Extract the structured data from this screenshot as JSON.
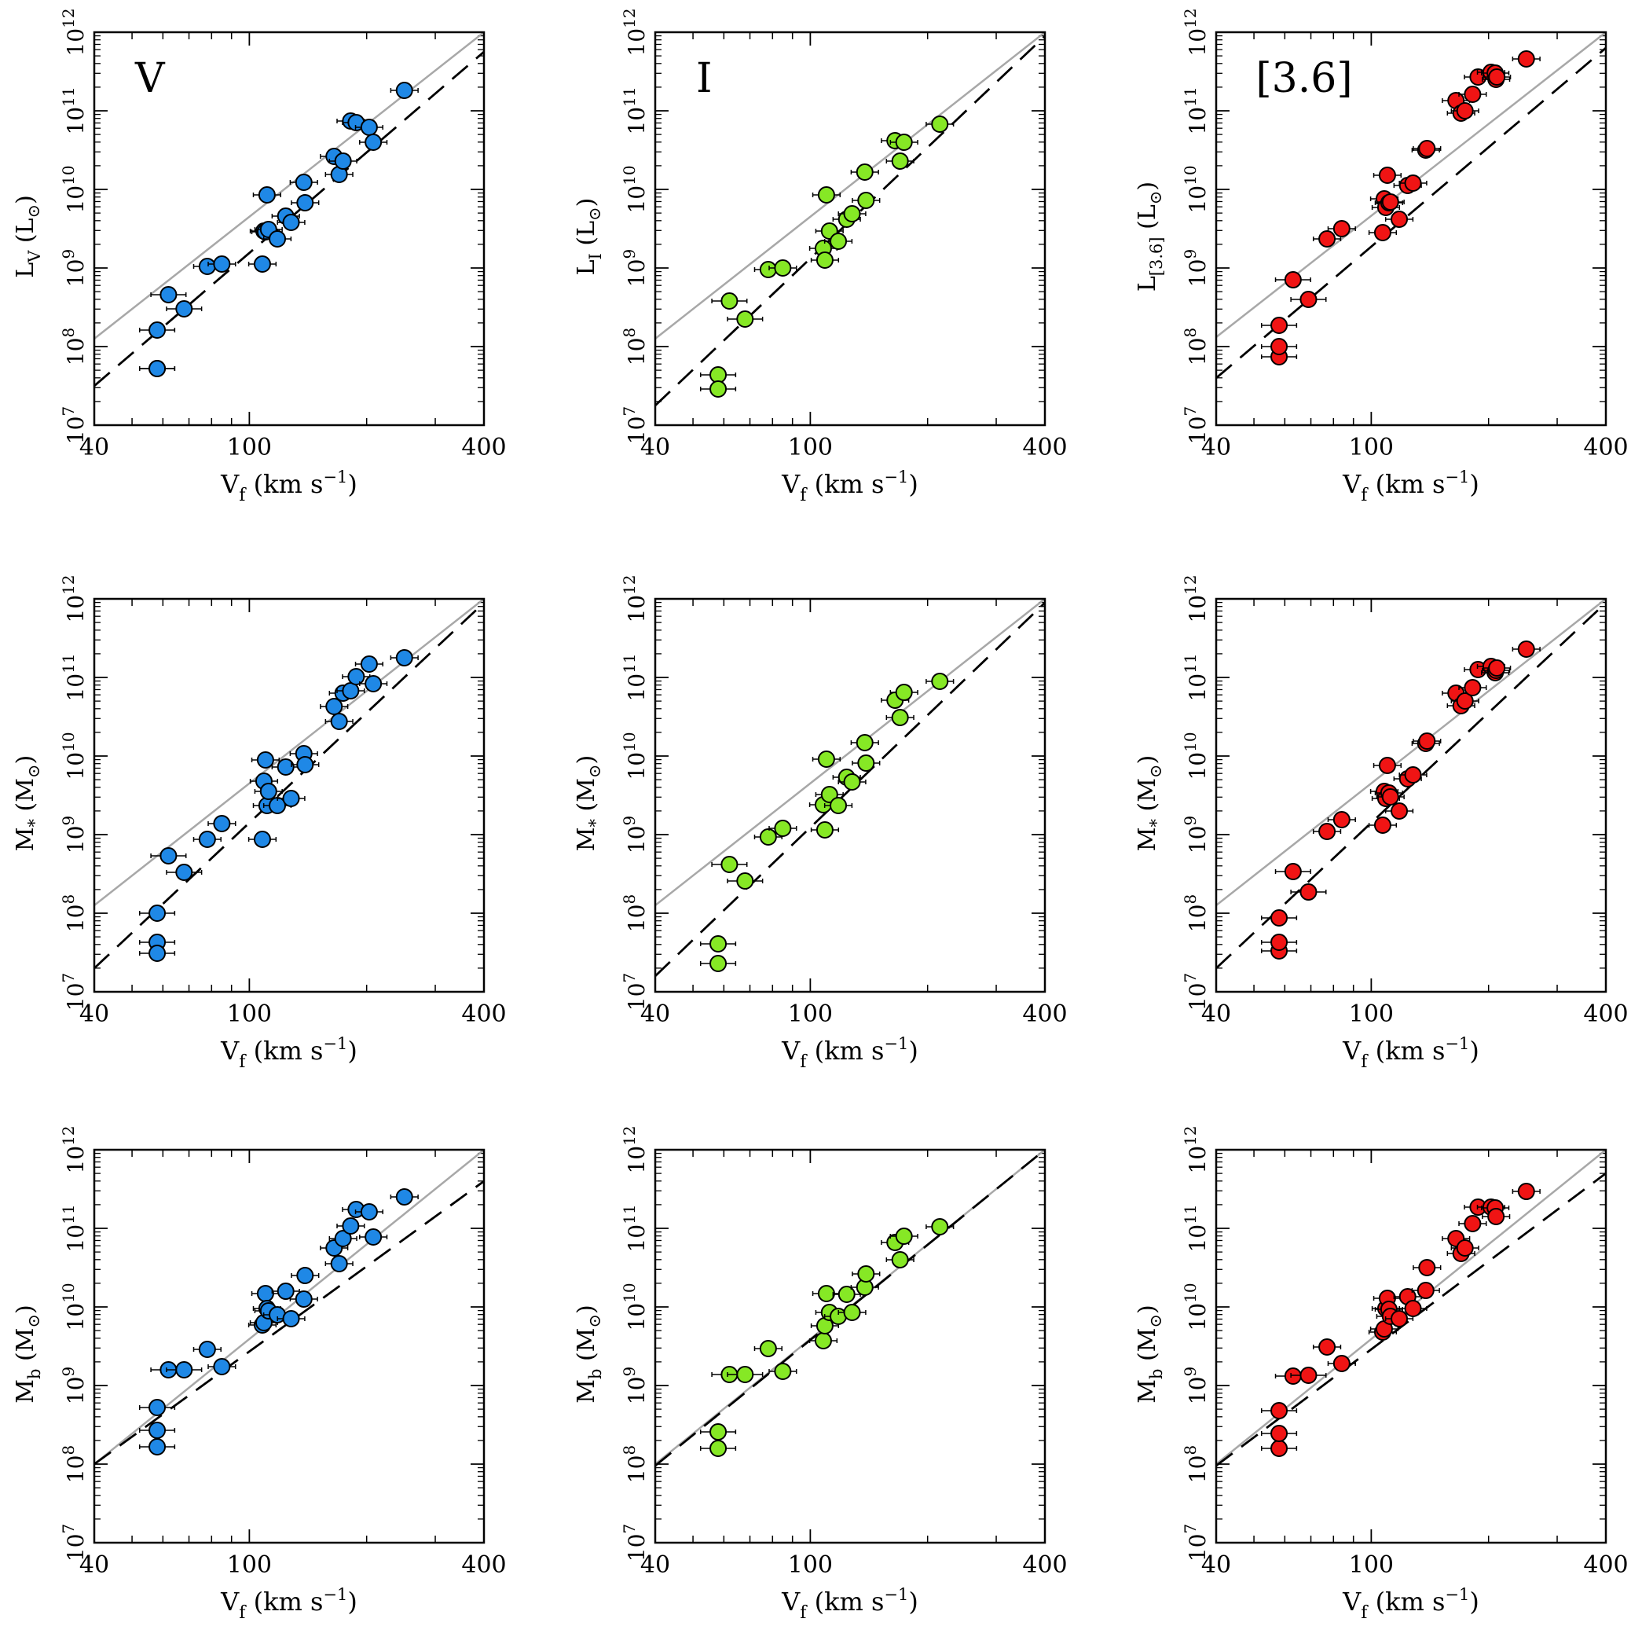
{
  "figure": {
    "x_axis": {
      "label_main": "V",
      "label_sub": "f",
      "label_units": "(km s",
      "label_exp": "−1",
      "label_close": ")",
      "ticks": [
        40,
        100,
        400
      ],
      "range": [
        40,
        400
      ],
      "scale": "log"
    },
    "y_axis": {
      "ticks": [
        7,
        8,
        9,
        10,
        11,
        12
      ],
      "base": "10",
      "range_log": [
        7,
        12
      ],
      "scale": "log"
    },
    "colors": {
      "V": "#1f88e6",
      "I": "#86e825",
      "[3.6]": "#f01414",
      "solid_line": "#a8a8a8",
      "dashed_line": "#000000"
    },
    "row_ylabels": [
      [
        "L",
        "V",
        " (L",
        "⊙",
        ")"
      ],
      [
        "M",
        "*",
        " (M",
        "⊙",
        ")"
      ],
      [
        "M",
        "b",
        " (M",
        "⊙",
        ")"
      ]
    ],
    "row1_ylabel_I": [
      "L",
      "I",
      " (L",
      "⊙",
      ")"
    ],
    "row1_ylabel_36": [
      "L",
      "[3.6]",
      " (L",
      "⊙",
      ")"
    ],
    "band_labels": [
      "V",
      "I",
      "[3.6]"
    ]
  },
  "chart_data": [
    {
      "type": "scatter",
      "band": "V",
      "quantity": "L_V",
      "line_solid": [
        [
          40,
          8.1
        ],
        [
          400,
          12.0
        ]
      ],
      "line_dashed": [
        [
          40,
          7.5
        ],
        [
          400,
          11.75
        ]
      ],
      "points": [
        [
          58,
          7.72
        ],
        [
          58,
          7.72
        ],
        [
          58,
          8.21
        ],
        [
          62,
          8.66
        ],
        [
          68,
          8.48
        ],
        [
          78,
          9.02
        ],
        [
          85,
          9.05
        ],
        [
          108,
          9.05
        ],
        [
          109,
          9.47
        ],
        [
          110,
          9.46
        ],
        [
          111,
          9.93
        ],
        [
          112,
          9.49
        ],
        [
          118,
          9.37
        ],
        [
          124,
          9.66
        ],
        [
          128,
          9.58
        ],
        [
          138,
          10.09
        ],
        [
          139,
          9.83
        ],
        [
          165,
          10.42
        ],
        [
          170,
          10.19
        ],
        [
          174,
          10.36
        ],
        [
          182,
          10.87
        ],
        [
          188,
          10.85
        ],
        [
          203,
          10.79
        ],
        [
          208,
          10.6
        ],
        [
          250,
          11.26
        ]
      ]
    },
    {
      "type": "scatter",
      "band": "I",
      "quantity": "L_I",
      "line_solid": [
        [
          40,
          8.1
        ],
        [
          400,
          12.0
        ]
      ],
      "line_dashed": [
        [
          40,
          7.25
        ],
        [
          400,
          11.95
        ]
      ],
      "points": [
        [
          58,
          7.64
        ],
        [
          58,
          7.46
        ],
        [
          62,
          8.58
        ],
        [
          68,
          8.35
        ],
        [
          78,
          8.98
        ],
        [
          85,
          9.0
        ],
        [
          108,
          9.25
        ],
        [
          109,
          9.1
        ],
        [
          110,
          9.93
        ],
        [
          112,
          9.47
        ],
        [
          118,
          9.34
        ],
        [
          124,
          9.62
        ],
        [
          128,
          9.69
        ],
        [
          138,
          10.22
        ],
        [
          139,
          9.86
        ],
        [
          165,
          10.62
        ],
        [
          170,
          10.36
        ],
        [
          174,
          10.6
        ],
        [
          215,
          10.83
        ]
      ]
    },
    {
      "type": "scatter",
      "band": "[3.6]",
      "quantity": "L_[3.6]",
      "line_solid": [
        [
          40,
          8.12
        ],
        [
          400,
          12.0
        ]
      ],
      "line_dashed": [
        [
          40,
          7.6
        ],
        [
          400,
          11.8
        ]
      ],
      "points": [
        [
          58,
          7.87
        ],
        [
          58,
          8.0
        ],
        [
          58,
          8.27
        ],
        [
          63,
          8.85
        ],
        [
          69,
          8.6
        ],
        [
          77,
          9.37
        ],
        [
          84,
          9.5
        ],
        [
          107,
          9.45
        ],
        [
          108,
          9.88
        ],
        [
          109,
          9.77
        ],
        [
          110,
          10.18
        ],
        [
          111,
          9.83
        ],
        [
          112,
          9.84
        ],
        [
          118,
          9.62
        ],
        [
          124,
          10.05
        ],
        [
          128,
          10.08
        ],
        [
          138,
          10.5
        ],
        [
          139,
          10.52
        ],
        [
          165,
          11.13
        ],
        [
          170,
          10.97
        ],
        [
          174,
          11.0
        ],
        [
          182,
          11.21
        ],
        [
          188,
          11.43
        ],
        [
          203,
          11.49
        ],
        [
          208,
          11.48
        ],
        [
          209,
          11.4
        ],
        [
          210,
          11.43
        ],
        [
          250,
          11.66
        ]
      ]
    },
    {
      "type": "scatter",
      "band": "V",
      "quantity": "M_*",
      "line_solid": [
        [
          40,
          8.1
        ],
        [
          400,
          12.0
        ]
      ],
      "line_dashed": [
        [
          40,
          7.3
        ],
        [
          400,
          11.95
        ]
      ],
      "points": [
        [
          58,
          8.0
        ],
        [
          58,
          7.63
        ],
        [
          58,
          7.49
        ],
        [
          62,
          8.73
        ],
        [
          68,
          8.52
        ],
        [
          78,
          8.94
        ],
        [
          85,
          9.14
        ],
        [
          108,
          8.94
        ],
        [
          109,
          9.68
        ],
        [
          110,
          9.95
        ],
        [
          111,
          9.37
        ],
        [
          112,
          9.55
        ],
        [
          118,
          9.37
        ],
        [
          124,
          9.86
        ],
        [
          128,
          9.46
        ],
        [
          138,
          10.03
        ],
        [
          139,
          9.89
        ],
        [
          165,
          10.63
        ],
        [
          170,
          10.44
        ],
        [
          174,
          10.8
        ],
        [
          182,
          10.83
        ],
        [
          188,
          11.01
        ],
        [
          203,
          11.17
        ],
        [
          208,
          10.92
        ],
        [
          250,
          11.25
        ]
      ]
    },
    {
      "type": "scatter",
      "band": "I",
      "quantity": "M_*",
      "line_solid": [
        [
          40,
          8.1
        ],
        [
          400,
          12.0
        ]
      ],
      "line_dashed": [
        [
          40,
          7.2
        ],
        [
          400,
          11.95
        ]
      ],
      "points": [
        [
          58,
          7.61
        ],
        [
          58,
          7.36
        ],
        [
          62,
          8.62
        ],
        [
          68,
          8.41
        ],
        [
          78,
          8.97
        ],
        [
          85,
          9.08
        ],
        [
          108,
          9.38
        ],
        [
          109,
          9.06
        ],
        [
          110,
          9.96
        ],
        [
          112,
          9.51
        ],
        [
          118,
          9.37
        ],
        [
          124,
          9.73
        ],
        [
          128,
          9.67
        ],
        [
          138,
          10.17
        ],
        [
          139,
          9.91
        ],
        [
          165,
          10.71
        ],
        [
          170,
          10.49
        ],
        [
          174,
          10.81
        ],
        [
          215,
          10.95
        ]
      ]
    },
    {
      "type": "scatter",
      "band": "[3.6]",
      "quantity": "M_*",
      "line_solid": [
        [
          40,
          8.1
        ],
        [
          400,
          12.0
        ]
      ],
      "line_dashed": [
        [
          40,
          7.3
        ],
        [
          400,
          11.95
        ]
      ],
      "points": [
        [
          58,
          7.52
        ],
        [
          58,
          7.63
        ],
        [
          58,
          7.94
        ],
        [
          63,
          8.53
        ],
        [
          69,
          8.27
        ],
        [
          77,
          9.04
        ],
        [
          84,
          9.19
        ],
        [
          107,
          9.12
        ],
        [
          108,
          9.55
        ],
        [
          109,
          9.46
        ],
        [
          110,
          9.88
        ],
        [
          111,
          9.53
        ],
        [
          112,
          9.48
        ],
        [
          118,
          9.3
        ],
        [
          124,
          9.71
        ],
        [
          128,
          9.76
        ],
        [
          138,
          10.16
        ],
        [
          139,
          10.19
        ],
        [
          165,
          10.8
        ],
        [
          170,
          10.64
        ],
        [
          174,
          10.7
        ],
        [
          182,
          10.87
        ],
        [
          188,
          11.1
        ],
        [
          203,
          11.14
        ],
        [
          208,
          11.06
        ],
        [
          209,
          11.09
        ],
        [
          210,
          11.12
        ],
        [
          250,
          11.36
        ]
      ]
    },
    {
      "type": "scatter",
      "band": "V",
      "quantity": "M_b",
      "line_solid": [
        [
          40,
          8.0
        ],
        [
          400,
          12.0
        ]
      ],
      "line_dashed": [
        [
          40,
          8.0
        ],
        [
          400,
          11.6
        ]
      ],
      "points": [
        [
          58,
          8.72
        ],
        [
          58,
          8.43
        ],
        [
          58,
          8.22
        ],
        [
          62,
          9.2
        ],
        [
          68,
          9.2
        ],
        [
          78,
          9.46
        ],
        [
          85,
          9.24
        ],
        [
          108,
          9.77
        ],
        [
          109,
          9.8
        ],
        [
          110,
          10.17
        ],
        [
          111,
          9.98
        ],
        [
          112,
          9.95
        ],
        [
          118,
          9.9
        ],
        [
          124,
          10.2
        ],
        [
          128,
          9.85
        ],
        [
          138,
          10.1
        ],
        [
          139,
          10.4
        ],
        [
          165,
          10.75
        ],
        [
          170,
          10.55
        ],
        [
          174,
          10.87
        ],
        [
          182,
          11.03
        ],
        [
          188,
          11.24
        ],
        [
          203,
          11.21
        ],
        [
          208,
          10.89
        ],
        [
          250,
          11.4
        ]
      ]
    },
    {
      "type": "scatter",
      "band": "I",
      "quantity": "M_b",
      "line_solid": [
        [
          40,
          8.0
        ],
        [
          400,
          12.0
        ]
      ],
      "line_dashed": [
        [
          40,
          7.98
        ],
        [
          400,
          12.0
        ]
      ],
      "points": [
        [
          58,
          8.41
        ],
        [
          58,
          8.2
        ],
        [
          62,
          9.14
        ],
        [
          68,
          9.14
        ],
        [
          78,
          9.47
        ],
        [
          85,
          9.18
        ],
        [
          108,
          9.57
        ],
        [
          109,
          9.76
        ],
        [
          110,
          10.17
        ],
        [
          112,
          9.93
        ],
        [
          118,
          9.88
        ],
        [
          124,
          10.16
        ],
        [
          128,
          9.93
        ],
        [
          138,
          10.25
        ],
        [
          139,
          10.42
        ],
        [
          165,
          10.82
        ],
        [
          170,
          10.6
        ],
        [
          174,
          10.9
        ],
        [
          215,
          11.02
        ]
      ]
    },
    {
      "type": "scatter",
      "band": "[3.6]",
      "quantity": "M_b",
      "line_solid": [
        [
          40,
          8.0
        ],
        [
          400,
          12.0
        ]
      ],
      "line_dashed": [
        [
          40,
          7.98
        ],
        [
          400,
          11.7
        ]
      ],
      "points": [
        [
          58,
          8.2
        ],
        [
          58,
          8.39
        ],
        [
          58,
          8.68
        ],
        [
          63,
          9.12
        ],
        [
          69,
          9.13
        ],
        [
          77,
          9.49
        ],
        [
          84,
          9.28
        ],
        [
          107,
          9.68
        ],
        [
          108,
          9.72
        ],
        [
          109,
          9.98
        ],
        [
          110,
          10.11
        ],
        [
          111,
          9.97
        ],
        [
          112,
          9.88
        ],
        [
          118,
          9.85
        ],
        [
          124,
          10.13
        ],
        [
          128,
          9.98
        ],
        [
          138,
          10.21
        ],
        [
          139,
          10.5
        ],
        [
          165,
          10.87
        ],
        [
          170,
          10.68
        ],
        [
          174,
          10.75
        ],
        [
          182,
          11.06
        ],
        [
          188,
          11.27
        ],
        [
          203,
          11.27
        ],
        [
          208,
          11.26
        ],
        [
          209,
          11.15
        ],
        [
          250,
          11.47
        ]
      ]
    }
  ]
}
